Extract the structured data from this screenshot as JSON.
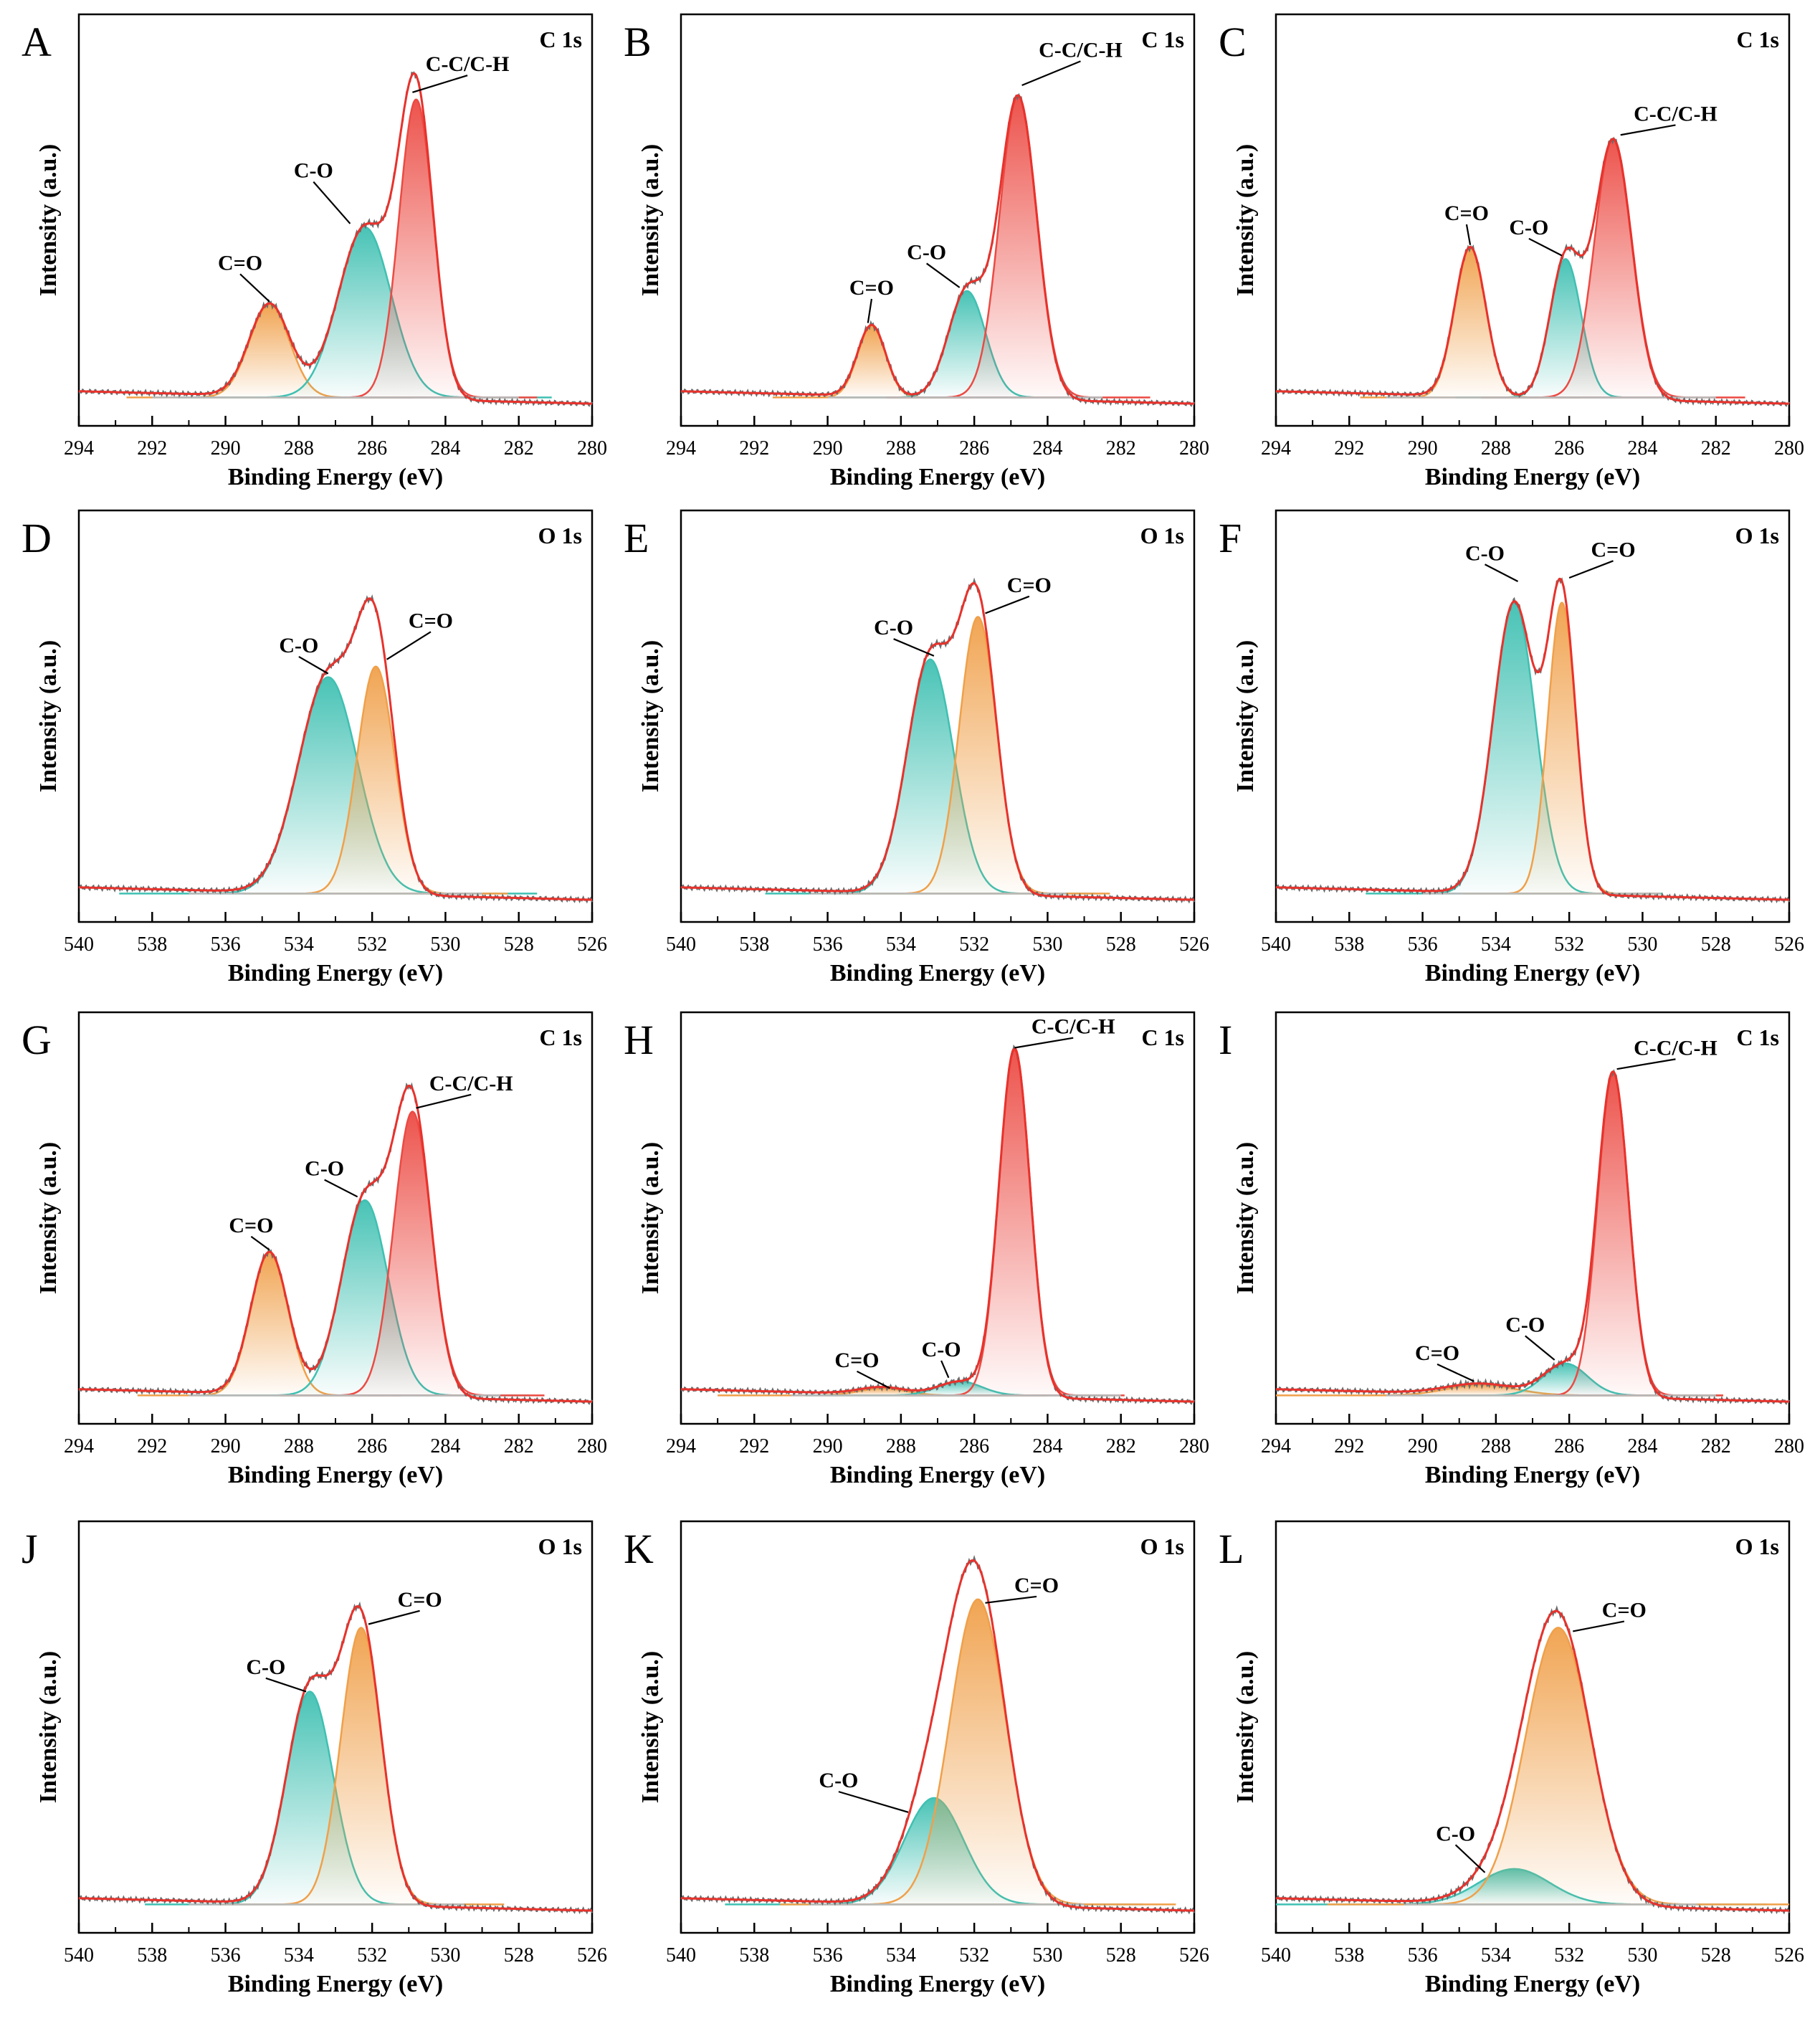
{
  "colors": {
    "envelope": "#e8322c",
    "raw": "#6b6b6b",
    "background_line": "#b9b9b9",
    "cc_peak": "#ec4a43",
    "co_peak": "#3fc0b2",
    "c_o_double_peak": "#f0a04a"
  },
  "chart_data": [
    {
      "type": "line",
      "panel": "A",
      "title": "C 1s",
      "xlabel": "Binding Energy (eV)",
      "ylabel": "Intensity (a.u.)",
      "xlim": [
        294,
        280
      ],
      "ylim": [
        -0.08,
        1.08
      ],
      "xticks": [
        "294",
        "292",
        "290",
        "288",
        "286",
        "284",
        "282",
        "280"
      ],
      "background": {
        "x": [
          292,
          282
        ],
        "y": [
          0.0,
          0.0
        ]
      },
      "peaks": [
        {
          "name": "C=O",
          "center": 288.8,
          "height": 0.26,
          "fwhm": 1.3,
          "color": "c_o_double_peak"
        },
        {
          "name": "C-O",
          "center": 286.2,
          "height": 0.48,
          "fwhm": 1.7,
          "color": "co_peak"
        },
        {
          "name": "C-C/C-H",
          "center": 284.8,
          "height": 0.84,
          "fwhm": 1.1,
          "color": "cc_peak"
        }
      ],
      "annotations": [
        {
          "text": "C=O",
          "x": 289.6,
          "y": 0.36,
          "tx": 288.8,
          "ty": 0.27
        },
        {
          "text": "C-O",
          "x": 287.6,
          "y": 0.62,
          "tx": 286.6,
          "ty": 0.49
        },
        {
          "text": "C-C/C-H",
          "x": 283.4,
          "y": 0.92,
          "tx": 284.9,
          "ty": 0.86
        }
      ]
    },
    {
      "type": "line",
      "panel": "B",
      "title": "C 1s",
      "xlabel": "Binding Energy (eV)",
      "ylabel": "Intensity (a.u.)",
      "xlim": [
        294,
        280
      ],
      "ylim": [
        -0.08,
        1.08
      ],
      "xticks": [
        "294",
        "292",
        "290",
        "288",
        "286",
        "284",
        "282",
        "280"
      ],
      "background": {
        "x": [
          290,
          282.5
        ],
        "y": [
          0.0,
          0.0
        ]
      },
      "peaks": [
        {
          "name": "C=O",
          "center": 288.8,
          "height": 0.2,
          "fwhm": 0.9,
          "color": "c_o_double_peak"
        },
        {
          "name": "C-O",
          "center": 286.2,
          "height": 0.3,
          "fwhm": 1.2,
          "color": "co_peak"
        },
        {
          "name": "C-C/C-H",
          "center": 284.8,
          "height": 0.85,
          "fwhm": 1.2,
          "color": "cc_peak"
        }
      ],
      "annotations": [
        {
          "text": "C=O",
          "x": 288.8,
          "y": 0.29,
          "tx": 288.9,
          "ty": 0.21
        },
        {
          "text": "C-O",
          "x": 287.3,
          "y": 0.39,
          "tx": 286.4,
          "ty": 0.31
        },
        {
          "text": "C-C/C-H",
          "x": 283.1,
          "y": 0.96,
          "tx": 284.7,
          "ty": 0.88
        }
      ]
    },
    {
      "type": "line",
      "panel": "C",
      "title": "C 1s",
      "xlabel": "Binding Energy (eV)",
      "ylabel": "Intensity (a.u.)",
      "xlim": [
        294,
        280
      ],
      "ylim": [
        -0.08,
        1.08
      ],
      "xticks": [
        "294",
        "292",
        "290",
        "288",
        "286",
        "284",
        "282",
        "280"
      ],
      "background": {
        "x": [
          291,
          282
        ],
        "y": [
          0.0,
          0.0
        ]
      },
      "peaks": [
        {
          "name": "C=O",
          "center": 288.7,
          "height": 0.42,
          "fwhm": 1.0,
          "color": "c_o_double_peak"
        },
        {
          "name": "C-O",
          "center": 286.1,
          "height": 0.39,
          "fwhm": 1.0,
          "color": "co_peak"
        },
        {
          "name": "C-C/C-H",
          "center": 284.8,
          "height": 0.73,
          "fwhm": 1.2,
          "color": "cc_peak"
        }
      ],
      "annotations": [
        {
          "text": "C=O",
          "x": 288.8,
          "y": 0.5,
          "tx": 288.7,
          "ty": 0.43
        },
        {
          "text": "C-O",
          "x": 287.1,
          "y": 0.46,
          "tx": 286.2,
          "ty": 0.4
        },
        {
          "text": "C-C/C-H",
          "x": 283.1,
          "y": 0.78,
          "tx": 284.6,
          "ty": 0.74
        }
      ]
    },
    {
      "type": "line",
      "panel": "D",
      "title": "O 1s",
      "xlabel": "Binding Energy (eV)",
      "ylabel": "Intensity (a.u.)",
      "xlim": [
        540,
        526
      ],
      "ylim": [
        -0.08,
        1.08
      ],
      "xticks": [
        "540",
        "538",
        "536",
        "534",
        "532",
        "530",
        "528",
        "526"
      ],
      "background": {
        "x": [
          537,
          529
        ],
        "y": [
          0.0,
          0.0
        ]
      },
      "peaks": [
        {
          "name": "C-O",
          "center": 533.2,
          "height": 0.61,
          "fwhm": 1.9,
          "color": "co_peak"
        },
        {
          "name": "C=O",
          "center": 531.9,
          "height": 0.64,
          "fwhm": 1.2,
          "color": "c_o_double_peak"
        }
      ],
      "annotations": [
        {
          "text": "C-O",
          "x": 534.0,
          "y": 0.68,
          "tx": 533.2,
          "ty": 0.62
        },
        {
          "text": "C=O",
          "x": 530.4,
          "y": 0.75,
          "tx": 531.6,
          "ty": 0.66
        }
      ]
    },
    {
      "type": "line",
      "panel": "E",
      "title": "O 1s",
      "xlabel": "Binding Energy (eV)",
      "ylabel": "Intensity (a.u.)",
      "xlim": [
        540,
        526
      ],
      "ylim": [
        -0.08,
        1.08
      ],
      "xticks": [
        "540",
        "538",
        "536",
        "534",
        "532",
        "530",
        "528",
        "526"
      ],
      "background": {
        "x": [
          536.5,
          529.5
        ],
        "y": [
          0.0,
          0.0
        ]
      },
      "peaks": [
        {
          "name": "C-O",
          "center": 533.2,
          "height": 0.66,
          "fwhm": 1.5,
          "color": "co_peak"
        },
        {
          "name": "C=O",
          "center": 531.9,
          "height": 0.78,
          "fwhm": 1.2,
          "color": "c_o_double_peak"
        }
      ],
      "annotations": [
        {
          "text": "C-O",
          "x": 534.2,
          "y": 0.73,
          "tx": 533.1,
          "ty": 0.67
        },
        {
          "text": "C=O",
          "x": 530.5,
          "y": 0.85,
          "tx": 531.7,
          "ty": 0.79
        }
      ]
    },
    {
      "type": "line",
      "panel": "F",
      "title": "O 1s",
      "xlabel": "Binding Energy (eV)",
      "ylabel": "Intensity (a.u.)",
      "xlim": [
        540,
        526
      ],
      "ylim": [
        -0.08,
        1.08
      ],
      "xticks": [
        "540",
        "538",
        "536",
        "534",
        "532",
        "530",
        "528",
        "526"
      ],
      "background": {
        "x": [
          536,
          529.5
        ],
        "y": [
          0.0,
          0.0
        ]
      },
      "peaks": [
        {
          "name": "C-O",
          "center": 533.5,
          "height": 0.82,
          "fwhm": 1.35,
          "color": "co_peak"
        },
        {
          "name": "C=O",
          "center": 532.2,
          "height": 0.82,
          "fwhm": 0.9,
          "color": "c_o_double_peak"
        }
      ],
      "annotations": [
        {
          "text": "C-O",
          "x": 534.3,
          "y": 0.94,
          "tx": 533.4,
          "ty": 0.88
        },
        {
          "text": "C=O",
          "x": 530.8,
          "y": 0.95,
          "tx": 532.0,
          "ty": 0.89
        }
      ]
    },
    {
      "type": "line",
      "panel": "G",
      "title": "C 1s",
      "xlabel": "Binding Energy (eV)",
      "ylabel": "Intensity (a.u.)",
      "xlim": [
        294,
        280
      ],
      "ylim": [
        -0.08,
        1.08
      ],
      "xticks": [
        "294",
        "292",
        "290",
        "288",
        "286",
        "284",
        "282",
        "280"
      ],
      "background": {
        "x": [
          291,
          282.5
        ],
        "y": [
          0.0,
          0.0
        ]
      },
      "peaks": [
        {
          "name": "C=O",
          "center": 288.8,
          "height": 0.4,
          "fwhm": 1.2,
          "color": "c_o_double_peak"
        },
        {
          "name": "C-O",
          "center": 286.2,
          "height": 0.55,
          "fwhm": 1.5,
          "color": "co_peak"
        },
        {
          "name": "C-C/C-H",
          "center": 284.9,
          "height": 0.8,
          "fwhm": 1.2,
          "color": "cc_peak"
        }
      ],
      "annotations": [
        {
          "text": "C=O",
          "x": 289.3,
          "y": 0.46,
          "tx": 288.8,
          "ty": 0.41
        },
        {
          "text": "C-O",
          "x": 287.3,
          "y": 0.62,
          "tx": 286.4,
          "ty": 0.56
        },
        {
          "text": "C-C/C-H",
          "x": 283.3,
          "y": 0.86,
          "tx": 284.8,
          "ty": 0.81
        }
      ]
    },
    {
      "type": "line",
      "panel": "H",
      "title": "C 1s",
      "xlabel": "Binding Energy (eV)",
      "ylabel": "Intensity (a.u.)",
      "xlim": [
        294,
        280
      ],
      "ylim": [
        -0.08,
        1.08
      ],
      "xticks": [
        "294",
        "292",
        "290",
        "288",
        "286",
        "284",
        "282",
        "280"
      ],
      "background": {
        "x": [
          291,
          282
        ],
        "y": [
          0.0,
          0.0
        ]
      },
      "peaks": [
        {
          "name": "C=O",
          "center": 288.5,
          "height": 0.02,
          "fwhm": 1.5,
          "color": "c_o_double_peak"
        },
        {
          "name": "C-O",
          "center": 286.4,
          "height": 0.04,
          "fwhm": 1.4,
          "color": "co_peak"
        },
        {
          "name": "C-C/C-H",
          "center": 284.9,
          "height": 0.98,
          "fwhm": 1.0,
          "color": "cc_peak"
        }
      ],
      "annotations": [
        {
          "text": "C=O",
          "x": 289.2,
          "y": 0.08,
          "tx": 288.3,
          "ty": 0.02
        },
        {
          "text": "C-O",
          "x": 286.9,
          "y": 0.11,
          "tx": 286.7,
          "ty": 0.05
        },
        {
          "text": "C-C/C-H",
          "x": 283.3,
          "y": 1.02,
          "tx": 284.9,
          "ty": 0.98
        }
      ]
    },
    {
      "type": "line",
      "panel": "I",
      "title": "C 1s",
      "xlabel": "Binding Energy (eV)",
      "ylabel": "Intensity (a.u.)",
      "xlim": [
        294,
        280
      ],
      "ylim": [
        -0.08,
        1.08
      ],
      "xticks": [
        "294",
        "292",
        "290",
        "288",
        "286",
        "284",
        "282",
        "280"
      ],
      "background": {
        "x": [
          291,
          282
        ],
        "y": [
          0.0,
          0.0
        ]
      },
      "peaks": [
        {
          "name": "C=O",
          "center": 288.4,
          "height": 0.03,
          "fwhm": 2.2,
          "color": "c_o_double_peak"
        },
        {
          "name": "C-O",
          "center": 286.1,
          "height": 0.09,
          "fwhm": 1.4,
          "color": "co_peak"
        },
        {
          "name": "C-C/C-H",
          "center": 284.8,
          "height": 0.91,
          "fwhm": 1.0,
          "color": "cc_peak"
        }
      ],
      "annotations": [
        {
          "text": "C=O",
          "x": 289.6,
          "y": 0.1,
          "tx": 288.6,
          "ty": 0.04
        },
        {
          "text": "C-O",
          "x": 287.2,
          "y": 0.18,
          "tx": 286.4,
          "ty": 0.1
        },
        {
          "text": "C-C/C-H",
          "x": 283.1,
          "y": 0.96,
          "tx": 284.7,
          "ty": 0.92
        }
      ]
    },
    {
      "type": "line",
      "panel": "J",
      "title": "O 1s",
      "xlabel": "Binding Energy (eV)",
      "ylabel": "Intensity (a.u.)",
      "xlim": [
        540,
        526
      ],
      "ylim": [
        -0.08,
        1.08
      ],
      "xticks": [
        "540",
        "538",
        "536",
        "534",
        "532",
        "530",
        "528",
        "526"
      ],
      "background": {
        "x": [
          537,
          529.5
        ],
        "y": [
          0.0,
          0.0
        ]
      },
      "peaks": [
        {
          "name": "C-O",
          "center": 533.7,
          "height": 0.6,
          "fwhm": 1.5,
          "color": "co_peak"
        },
        {
          "name": "C=O",
          "center": 532.3,
          "height": 0.78,
          "fwhm": 1.3,
          "color": "c_o_double_peak"
        }
      ],
      "annotations": [
        {
          "text": "C-O",
          "x": 534.9,
          "y": 0.65,
          "tx": 533.8,
          "ty": 0.6
        },
        {
          "text": "C=O",
          "x": 530.7,
          "y": 0.84,
          "tx": 532.1,
          "ty": 0.79
        }
      ]
    },
    {
      "type": "line",
      "panel": "K",
      "title": "O 1s",
      "xlabel": "Binding Energy (eV)",
      "ylabel": "Intensity (a.u.)",
      "xlim": [
        540,
        526
      ],
      "ylim": [
        -0.08,
        1.08
      ],
      "xticks": [
        "540",
        "538",
        "536",
        "534",
        "532",
        "530",
        "528",
        "526"
      ],
      "background": {
        "x": [
          536.5,
          529
        ],
        "y": [
          0.0,
          0.0
        ]
      },
      "peaks": [
        {
          "name": "C-O",
          "center": 533.1,
          "height": 0.3,
          "fwhm": 1.9,
          "color": "co_peak"
        },
        {
          "name": "C=O",
          "center": 531.9,
          "height": 0.86,
          "fwhm": 1.8,
          "color": "c_o_double_peak"
        }
      ],
      "annotations": [
        {
          "text": "C-O",
          "x": 535.7,
          "y": 0.33,
          "tx": 533.8,
          "ty": 0.26
        },
        {
          "text": "C=O",
          "x": 530.3,
          "y": 0.88,
          "tx": 531.7,
          "ty": 0.85
        }
      ]
    },
    {
      "type": "line",
      "panel": "L",
      "title": "O 1s",
      "xlabel": "Binding Energy (eV)",
      "ylabel": "Intensity (a.u.)",
      "xlim": [
        540,
        526
      ],
      "ylim": [
        -0.08,
        1.08
      ],
      "xticks": [
        "540",
        "538",
        "536",
        "534",
        "532",
        "530",
        "528",
        "526"
      ],
      "background": {
        "x": [
          536.5,
          528.5
        ],
        "y": [
          0.0,
          0.0
        ]
      },
      "peaks": [
        {
          "name": "C-O",
          "center": 533.5,
          "height": 0.1,
          "fwhm": 2.3,
          "color": "co_peak"
        },
        {
          "name": "C=O",
          "center": 532.3,
          "height": 0.78,
          "fwhm": 2.1,
          "color": "c_o_double_peak"
        }
      ],
      "annotations": [
        {
          "text": "C-O",
          "x": 535.1,
          "y": 0.18,
          "tx": 534.3,
          "ty": 0.09
        },
        {
          "text": "C=O",
          "x": 530.5,
          "y": 0.81,
          "tx": 531.9,
          "ty": 0.77
        }
      ]
    }
  ]
}
